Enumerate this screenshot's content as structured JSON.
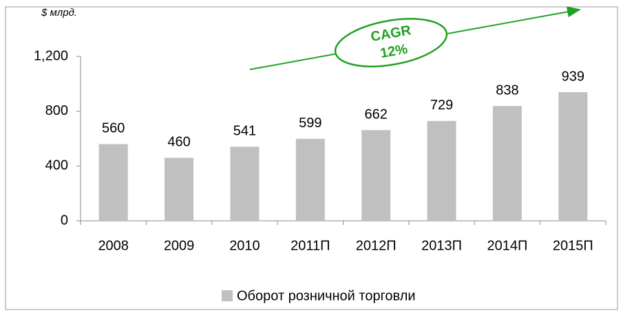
{
  "chart_data": {
    "type": "bar",
    "unit_label": "$ млрд.",
    "annotation": [
      "CAGR",
      "12%"
    ],
    "categories": [
      "2008",
      "2009",
      "2010",
      "2011П",
      "2012П",
      "2013П",
      "2014П",
      "2015П"
    ],
    "series": [
      {
        "name": "Оборот розничной торговли",
        "color": "#c0c0c0",
        "values": [
          560,
          460,
          541,
          599,
          662,
          729,
          838,
          939
        ]
      }
    ],
    "ylim": [
      0,
      1200
    ],
    "yticks": [
      0,
      400,
      800,
      {
        "value": 1200,
        "label": "1,200"
      }
    ],
    "grid": false,
    "legend": "bottom"
  }
}
